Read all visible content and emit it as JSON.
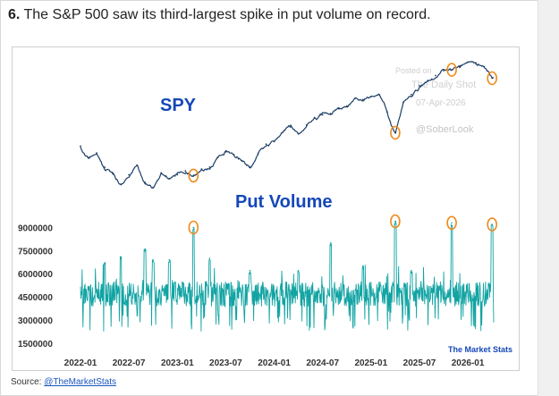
{
  "headline": {
    "number": "6.",
    "text": "The S&P 500 saw its third-largest spike in put volume on record."
  },
  "source": {
    "label": "Source:",
    "link": "@TheMarketStats"
  },
  "chart_data": {
    "type": "line",
    "title": "",
    "panels": [
      {
        "name": "SPY",
        "label": "SPY",
        "color": "#1b3d66",
        "y_axis": "hidden",
        "approx_range": [
          350,
          620
        ],
        "points": [
          [
            "2022-01",
            470
          ],
          [
            "2022-02",
            440
          ],
          [
            "2022-03",
            452
          ],
          [
            "2022-04",
            415
          ],
          [
            "2022-05",
            400
          ],
          [
            "2022-06",
            370
          ],
          [
            "2022-07",
            395
          ],
          [
            "2022-08",
            420
          ],
          [
            "2022-09",
            375
          ],
          [
            "2022-10",
            362
          ],
          [
            "2022-11",
            400
          ],
          [
            "2022-12",
            385
          ],
          [
            "2023-01",
            395
          ],
          [
            "2023-02",
            405
          ],
          [
            "2023-03",
            393
          ],
          [
            "2023-04",
            410
          ],
          [
            "2023-05",
            415
          ],
          [
            "2023-06",
            440
          ],
          [
            "2023-07",
            455
          ],
          [
            "2023-08",
            448
          ],
          [
            "2023-09",
            432
          ],
          [
            "2023-10",
            415
          ],
          [
            "2023-11",
            450
          ],
          [
            "2023-12",
            475
          ],
          [
            "2024-01",
            482
          ],
          [
            "2024-02",
            505
          ],
          [
            "2024-03",
            520
          ],
          [
            "2024-04",
            502
          ],
          [
            "2024-05",
            525
          ],
          [
            "2024-06",
            545
          ],
          [
            "2024-07",
            552
          ],
          [
            "2024-08",
            555
          ],
          [
            "2024-09",
            568
          ],
          [
            "2024-10",
            575
          ],
          [
            "2024-11",
            595
          ],
          [
            "2024-12",
            592
          ],
          [
            "2025-01",
            600
          ],
          [
            "2025-02",
            605
          ],
          [
            "2025-03",
            560
          ],
          [
            "2025-04",
            505
          ],
          [
            "2025-05",
            585
          ],
          [
            "2025-06",
            605
          ],
          [
            "2025-07",
            628
          ],
          [
            "2025-08",
            640
          ],
          [
            "2025-09",
            655
          ],
          [
            "2025-10",
            668
          ],
          [
            "2025-11",
            670
          ],
          [
            "2025-12",
            680
          ],
          [
            "2026-01",
            690
          ],
          [
            "2026-02",
            688
          ],
          [
            "2026-03",
            678
          ],
          [
            "2026-04",
            648
          ]
        ],
        "highlights": [
          "2023-03",
          "2025-04",
          "2025-11",
          "2026-04"
        ]
      },
      {
        "name": "Put Volume",
        "label": "Put Volume",
        "color": "#12a3a3",
        "y_ticks": [
          "1500000",
          "3000000",
          "4500000",
          "6000000",
          "7500000",
          "9000000"
        ],
        "y_tick_values": [
          1500000,
          3000000,
          4500000,
          6000000,
          7500000,
          9000000
        ],
        "ylim": [
          1200000,
          9900000
        ],
        "typical_range": [
          3000000,
          5500000
        ],
        "spikes": [
          {
            "date": "2022-04",
            "value": 6700000
          },
          {
            "date": "2022-06",
            "value": 7100000
          },
          {
            "date": "2022-09",
            "value": 7600000
          },
          {
            "date": "2022-10",
            "value": 6900000
          },
          {
            "date": "2022-12",
            "value": 6900000
          },
          {
            "date": "2023-03",
            "value": 9000000
          },
          {
            "date": "2023-05",
            "value": 7000000
          },
          {
            "date": "2023-10",
            "value": 6200000
          },
          {
            "date": "2024-04",
            "value": 6200000
          },
          {
            "date": "2024-08",
            "value": 8000000
          },
          {
            "date": "2024-12",
            "value": 6500000
          },
          {
            "date": "2025-04",
            "value": 9400000
          },
          {
            "date": "2025-06",
            "value": 6200000
          },
          {
            "date": "2025-11",
            "value": 9300000
          },
          {
            "date": "2026-04",
            "value": 9200000
          }
        ],
        "highlights": [
          "2023-03",
          "2025-04",
          "2025-11",
          "2026-04"
        ]
      }
    ],
    "x_ticks": [
      "2022-01",
      "2022-07",
      "2023-01",
      "2023-07",
      "2024-01",
      "2024-07",
      "2025-01",
      "2025-07",
      "2026-01"
    ],
    "highlight_color": "#f08a1c",
    "annotations": {
      "watermark_line1": "Posted on",
      "watermark_line2": "The Daily Shot",
      "watermark_date": "07-Apr-2026",
      "handle": "@SoberLook",
      "credit": "The Market Stats"
    }
  }
}
